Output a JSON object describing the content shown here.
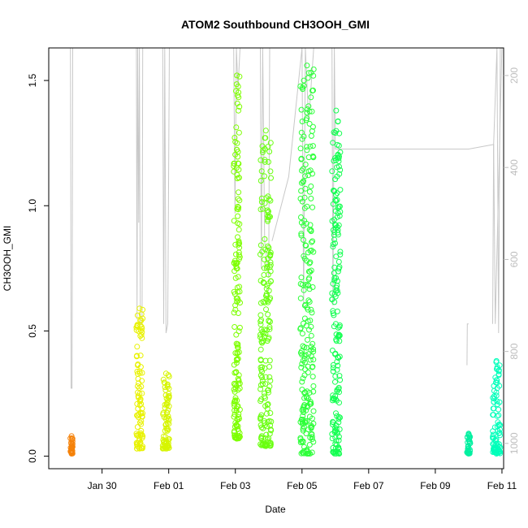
{
  "chart_data": {
    "type": "scatter",
    "title": "ATOM2 Southbound CH3OOH_GMI",
    "xlabel": "Date",
    "ylabel": "CH3OOH_GMI",
    "x_start": "Jan 29 00:00",
    "xlim_days": [
      -0.6,
      13.05
    ],
    "ylim": [
      -0.05,
      1.63
    ],
    "y2lim": [
      1055,
      140
    ],
    "x_ticks": [
      {
        "day": 1,
        "label": "Jan 30"
      },
      {
        "day": 3,
        "label": "Feb 01"
      },
      {
        "day": 5,
        "label": "Feb 03"
      },
      {
        "day": 7,
        "label": "Feb 05"
      },
      {
        "day": 9,
        "label": "Feb 07"
      },
      {
        "day": 11,
        "label": "Feb 09"
      },
      {
        "day": 13,
        "label": "Feb 11"
      }
    ],
    "y_ticks": [
      "0.0",
      "0.5",
      "1.0",
      "1.5"
    ],
    "y2_ticks": [
      "200",
      "400",
      "600",
      "800",
      "1000"
    ],
    "grid": false,
    "legend": "none",
    "flights": [
      {
        "t0": 0.05,
        "t1": 0.12,
        "ymin": 0.01,
        "ymax": 0.08,
        "color": "#f5820a",
        "pressure": [
          [
            0.05,
            140
          ],
          [
            0.06,
            380
          ],
          [
            0.07,
            880
          ],
          [
            0.1,
            880
          ],
          [
            0.12,
            140
          ]
        ]
      },
      {
        "t0": 2.03,
        "t1": 2.22,
        "ymin": 0.03,
        "ymax": 0.59,
        "color": "#e8f200",
        "pressure": [
          [
            2.03,
            140
          ],
          [
            2.05,
            730
          ],
          [
            2.07,
            140
          ],
          [
            2.1,
            520
          ],
          [
            2.12,
            140
          ],
          [
            2.15,
            740
          ],
          [
            2.2,
            740
          ],
          [
            2.22,
            140
          ]
        ]
      },
      {
        "t0": 2.82,
        "t1": 3.02,
        "ymin": 0.03,
        "ymax": 0.33,
        "color": "#d6f500",
        "pressure": [
          [
            2.82,
            140
          ],
          [
            2.85,
            740
          ],
          [
            2.88,
            140
          ],
          [
            2.92,
            760
          ],
          [
            2.97,
            740
          ],
          [
            3.02,
            140
          ]
        ]
      },
      {
        "t0": 4.95,
        "t1": 5.14,
        "ymin": 0.07,
        "ymax": 1.52,
        "color": "#7dff00",
        "pressure": [
          [
            4.95,
            140
          ],
          [
            4.99,
            500
          ],
          [
            5.03,
            140
          ],
          [
            5.08,
            230
          ],
          [
            5.14,
            140
          ]
        ]
      },
      {
        "t0": 5.75,
        "t1": 6.08,
        "ymin": 0.04,
        "ymax": 1.3,
        "color": "#6aff10",
        "pressure": [
          [
            5.75,
            140
          ],
          [
            5.78,
            620
          ],
          [
            5.82,
            140
          ],
          [
            5.88,
            560
          ],
          [
            6.0,
            640
          ],
          [
            6.03,
            140
          ],
          [
            6.08,
            140
          ]
        ]
      },
      {
        "t0": 6.95,
        "t1": 7.35,
        "ymin": 0.01,
        "ymax": 1.56,
        "color": "#2cff38",
        "pressure": [
          [
            6.1,
            560
          ],
          [
            6.6,
            420
          ],
          [
            7.0,
            140
          ],
          [
            7.05,
            700
          ],
          [
            7.1,
            140
          ],
          [
            7.2,
            300
          ],
          [
            7.35,
            140
          ]
        ]
      },
      {
        "t0": 7.9,
        "t1": 8.15,
        "ymin": 0.01,
        "ymax": 1.38,
        "color": "#12ff50",
        "pressure": [
          [
            7.9,
            140
          ],
          [
            7.93,
            700
          ],
          [
            7.97,
            140
          ],
          [
            8.0,
            360
          ],
          [
            12.0,
            360
          ],
          [
            12.75,
            350
          ],
          [
            12.8,
            740
          ],
          [
            13.0,
            140
          ]
        ]
      },
      {
        "t0": 11.95,
        "t1": 12.05,
        "ymin": 0.01,
        "ymax": 0.09,
        "color": "#00f0a0",
        "pressure": [
          [
            11.95,
            830
          ],
          [
            11.96,
            740
          ],
          [
            12.0,
            740
          ]
        ]
      },
      {
        "t0": 12.72,
        "t1": 12.95,
        "ymin": 0.01,
        "ymax": 0.38,
        "color": "#00ffba",
        "pressure": [
          [
            12.72,
            740
          ],
          [
            12.75,
            350
          ],
          [
            12.85,
            140
          ],
          [
            12.9,
            760
          ],
          [
            12.95,
            140
          ]
        ]
      }
    ]
  }
}
